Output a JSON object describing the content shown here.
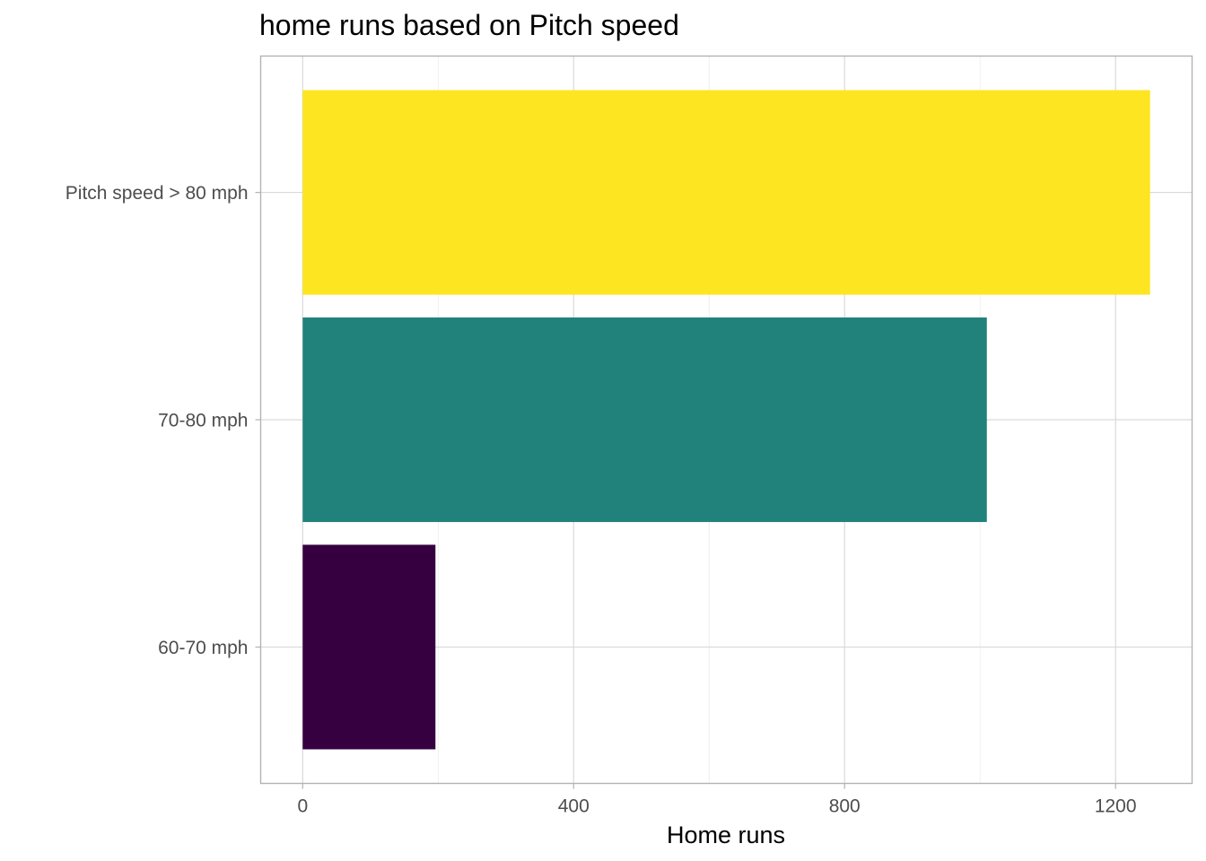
{
  "chart_data": {
    "type": "bar",
    "orientation": "horizontal",
    "title": "home runs based on Pitch speed",
    "xlabel": "Home runs",
    "ylabel": "",
    "categories": [
      "60-70 mph",
      "70-80 mph",
      "Pitch speed > 80 mph"
    ],
    "values": [
      196,
      1010,
      1251
    ],
    "colors": [
      "#360040",
      "#21817b",
      "#fde521"
    ],
    "xlim": [
      -62,
      1313
    ],
    "xticks": [
      0,
      400,
      800,
      1200
    ],
    "xtick_labels": [
      "0",
      "400",
      "800",
      "1200"
    ],
    "grid": true,
    "legend": "none"
  }
}
